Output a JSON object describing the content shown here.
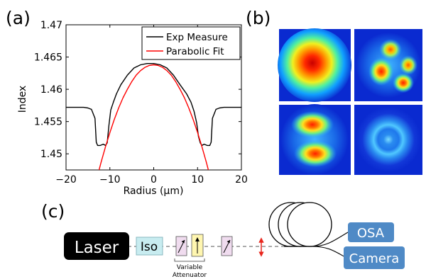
{
  "panel_labels": {
    "a": "(a)",
    "b": "(b)",
    "c": "(c)"
  },
  "chart_data": {
    "type": "line",
    "xlabel": "Radius (µm)",
    "ylabel": "Index",
    "xlim": [
      -20,
      20
    ],
    "ylim": [
      1.4475,
      1.47
    ],
    "x_ticks": [
      -20,
      -10,
      0,
      10,
      20
    ],
    "x_tick_labels": [
      "−20",
      "−10",
      "0",
      "10",
      "20"
    ],
    "y_ticks": [
      1.45,
      1.455,
      1.46,
      1.465,
      1.47
    ],
    "y_tick_labels": [
      "1.45",
      "1.455",
      "1.46",
      "1.465",
      "1.47"
    ],
    "legend_position": "top-right",
    "grid": false,
    "series": [
      {
        "name": "Exp Measure",
        "color": "#000000",
        "x": [
          -20,
          -16,
          -15,
          -14.2,
          -13.4,
          -13.1,
          -12.8,
          -12.2,
          -11.5,
          -11.0,
          -10.6,
          -10.2,
          -9.8,
          -9.2,
          -8.5,
          -7.5,
          -6.0,
          -4.5,
          -3.0,
          -1.5,
          0,
          1.5,
          3.0,
          4.5,
          6.0,
          7.5,
          8.5,
          9.2,
          9.8,
          10.2,
          10.6,
          11.0,
          11.5,
          12.2,
          12.8,
          13.1,
          13.4,
          14.2,
          15,
          16,
          20
        ],
        "y": [
          1.4572,
          1.4572,
          1.4571,
          1.4569,
          1.4555,
          1.4518,
          1.4513,
          1.4513,
          1.4515,
          1.4513,
          1.4517,
          1.4545,
          1.4568,
          1.458,
          1.4593,
          1.4607,
          1.4622,
          1.4633,
          1.4638,
          1.464,
          1.464,
          1.4638,
          1.4633,
          1.4622,
          1.4607,
          1.4593,
          1.458,
          1.4566,
          1.4548,
          1.4527,
          1.4517,
          1.4513,
          1.4515,
          1.4513,
          1.4513,
          1.4518,
          1.4555,
          1.4569,
          1.4571,
          1.4572,
          1.4572
        ]
      },
      {
        "name": "Parabolic Fit",
        "color": "#ff0000",
        "x": [
          -12.5,
          -12,
          -11,
          -10,
          -9,
          -8,
          -7,
          -6,
          -5,
          -4,
          -3,
          -2,
          -1,
          0,
          1,
          2,
          3,
          4,
          5,
          6,
          7,
          8,
          9,
          10,
          11,
          12,
          12.5
        ],
        "y": [
          1.4474,
          1.4487,
          1.4511,
          1.4533,
          1.4553,
          1.4571,
          1.4587,
          1.46,
          1.4612,
          1.4622,
          1.4629,
          1.4634,
          1.4637,
          1.4638,
          1.4637,
          1.4634,
          1.4629,
          1.4622,
          1.4612,
          1.46,
          1.4587,
          1.4571,
          1.4553,
          1.4533,
          1.4511,
          1.4487,
          1.4474
        ]
      }
    ]
  },
  "setup": {
    "laser": "Laser",
    "iso": "Iso",
    "attenuator_label_line1": "Variable",
    "attenuator_label_line2": "Attenuator",
    "osa": "OSA",
    "camera": "Camera"
  },
  "colors": {
    "laser_bg": "#000000",
    "iso_bg": "#c8ecf0",
    "yellow_plate": "#fff6b0",
    "pink_plate": "#f0dcef",
    "output_box": "#4f8ac6",
    "lens_arrow": "#e8261d"
  }
}
